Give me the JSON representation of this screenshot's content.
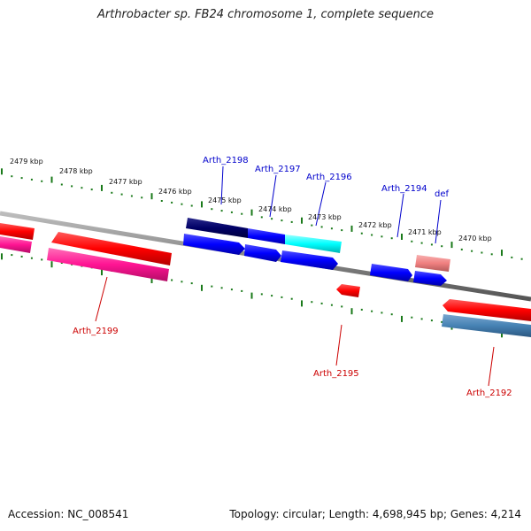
{
  "title": "Arthrobacter sp. FB24 chromosome 1, complete sequence",
  "footer": {
    "accession": "Accession: NC_008541",
    "summary": "Topology: circular; Length: 4,698,945 bp; Genes: 4,214"
  },
  "ruler": {
    "ticks": [
      {
        "label": "2479 kbp"
      },
      {
        "label": "2478 kbp"
      },
      {
        "label": "2477 kbp"
      },
      {
        "label": "2476 kbp"
      },
      {
        "label": "2475 kbp"
      },
      {
        "label": "2474 kbp"
      },
      {
        "label": "2473 kbp"
      },
      {
        "label": "2472 kbp"
      },
      {
        "label": "2471 kbp"
      },
      {
        "label": "2470 kbp"
      }
    ]
  },
  "genes": {
    "forward_labels": [
      "Arth_2198",
      "Arth_2197",
      "Arth_2196",
      "Arth_2194",
      "def"
    ],
    "reverse_labels": [
      "Arth_2199",
      "Arth_2195",
      "Arth_2192"
    ]
  },
  "colors": {
    "forward_label": "#0000cc",
    "reverse_label": "#cc0000",
    "backbone": "#888888",
    "tick": "#1a7a1a"
  }
}
